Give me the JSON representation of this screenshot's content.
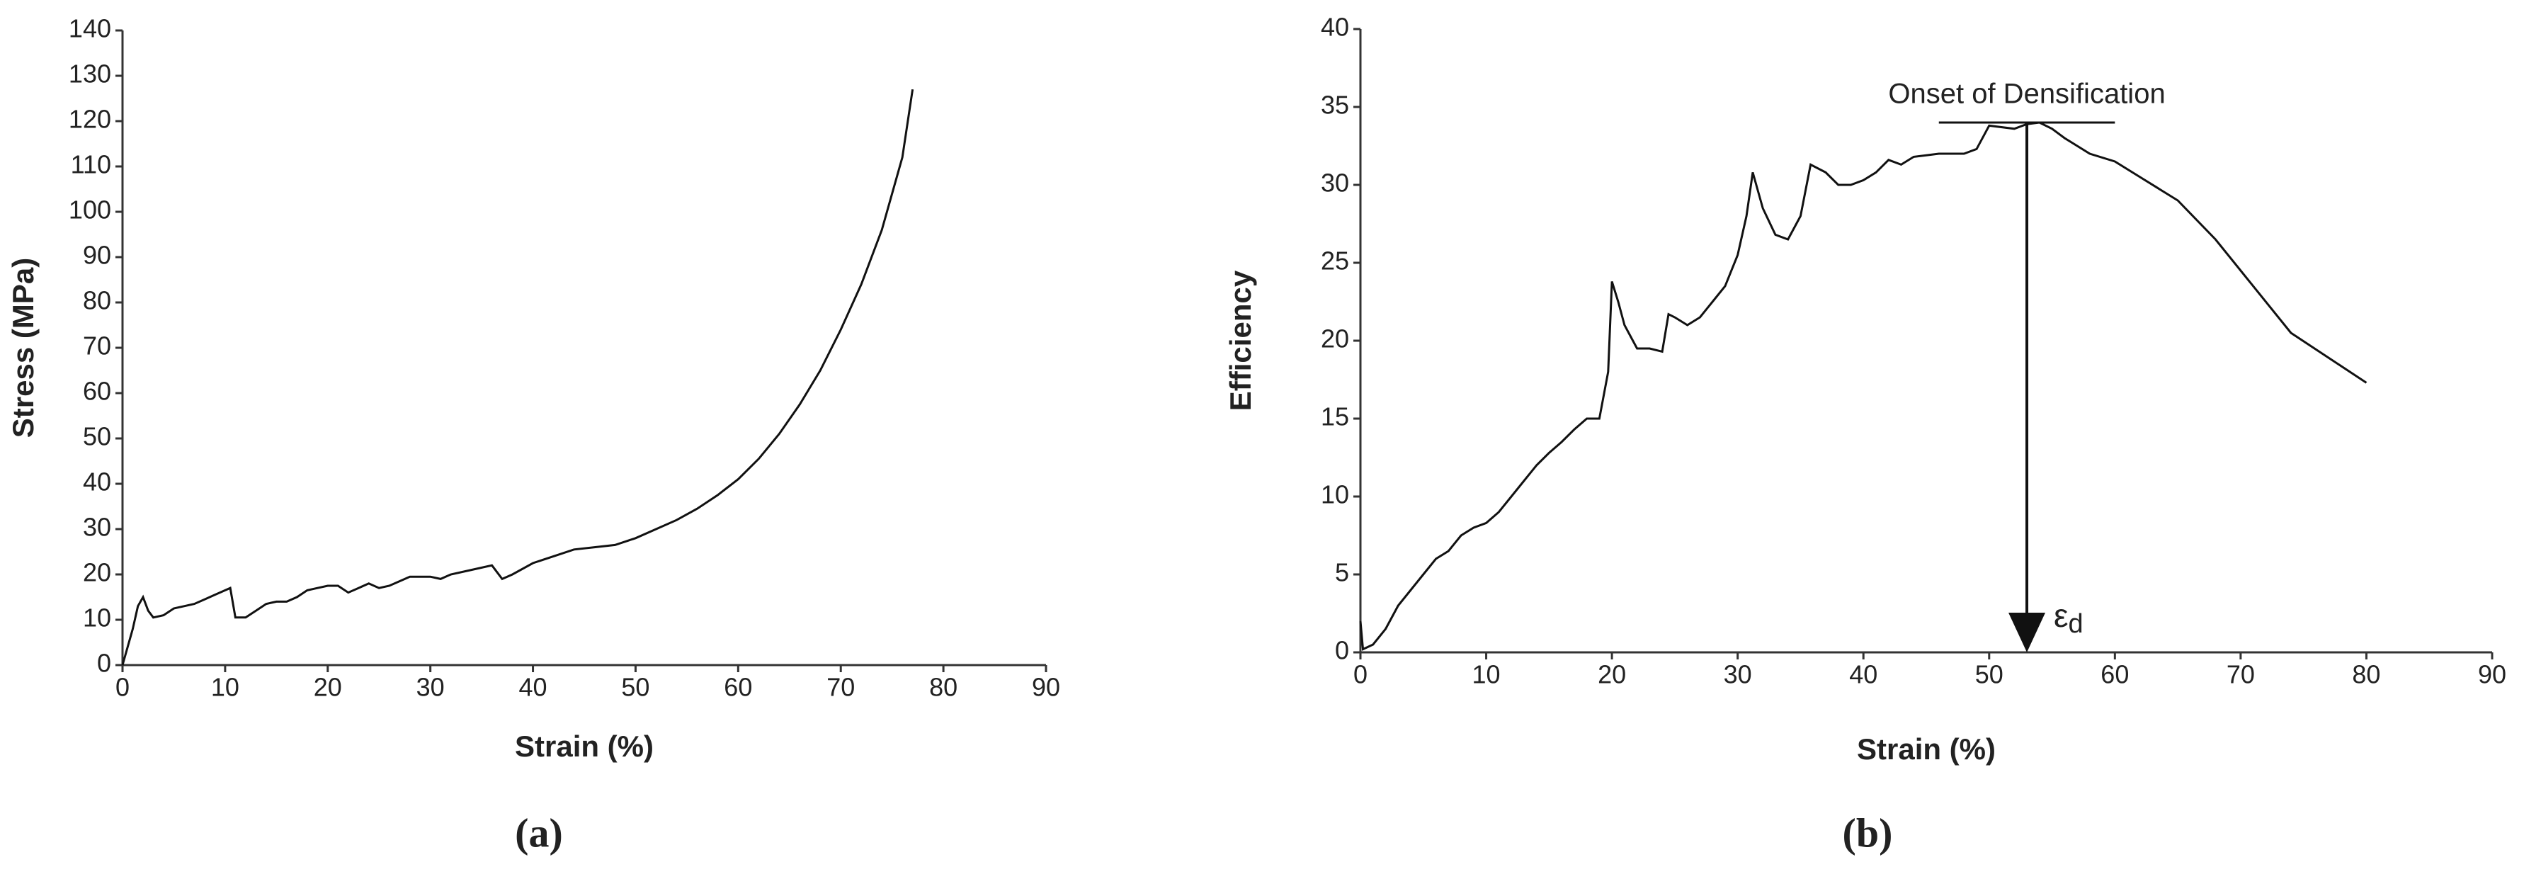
{
  "chart_data": [
    {
      "type": "line",
      "caption": "(a)",
      "x_label": "Strain (%)",
      "y_label": "Stress (MPa)",
      "color": "#111111",
      "x": [
        0,
        1,
        1.5,
        2,
        2.5,
        3,
        4,
        5,
        6,
        7,
        8,
        9,
        10,
        10.5,
        11,
        12,
        13,
        14,
        15,
        16,
        17,
        18,
        19,
        20,
        21,
        22,
        23,
        24,
        25,
        26,
        27,
        28,
        30,
        31,
        32,
        34,
        36,
        37,
        38,
        40,
        42,
        44,
        46,
        48,
        50,
        52,
        54,
        56,
        58,
        60,
        62,
        64,
        66,
        68,
        70,
        72,
        74,
        76,
        77
      ],
      "values": [
        0,
        8,
        13,
        15,
        12,
        10.5,
        11,
        12.5,
        13,
        13.5,
        14.5,
        15.5,
        16.5,
        17,
        10.5,
        10.5,
        12,
        13.5,
        14,
        14,
        15,
        16.5,
        17,
        17.5,
        17.5,
        16,
        17,
        18,
        17,
        17.5,
        18.5,
        19.5,
        19.5,
        19,
        20,
        21,
        22,
        19,
        20,
        22.5,
        24,
        25.5,
        26,
        26.5,
        28,
        30,
        32,
        34.5,
        37.5,
        41,
        45.5,
        51,
        57.5,
        65,
        74,
        84,
        96,
        112,
        127
      ],
      "xlim": [
        0,
        90
      ],
      "ylim": [
        0,
        140
      ],
      "xticks": [
        0,
        10,
        20,
        30,
        40,
        50,
        60,
        70,
        80,
        90
      ],
      "yticks": [
        0,
        10,
        20,
        30,
        40,
        50,
        60,
        70,
        80,
        90,
        100,
        110,
        120,
        130,
        140
      ]
    },
    {
      "type": "line",
      "caption": "(b)",
      "x_label": "Strain (%)",
      "y_label": "Efficiency",
      "color": "#111111",
      "x": [
        0,
        0.2,
        1,
        2,
        3,
        4,
        5,
        6,
        7,
        8,
        9,
        10,
        11,
        12,
        13,
        14,
        15,
        16,
        17,
        18,
        19,
        19.7,
        20,
        20.5,
        21,
        22,
        23,
        24,
        24.5,
        25,
        26,
        27,
        28,
        29,
        30,
        30.7,
        31.2,
        32,
        33,
        34,
        35,
        35.8,
        37,
        38,
        39,
        40,
        41,
        42,
        43,
        44,
        45,
        46,
        48,
        49,
        50,
        52,
        53,
        54,
        55,
        56,
        58,
        60,
        62,
        65,
        68,
        70,
        74,
        80
      ],
      "values": [
        2,
        0.2,
        0.5,
        1.5,
        3,
        4,
        5,
        6,
        6.5,
        7.5,
        8,
        8.3,
        9,
        10,
        11,
        12,
        12.8,
        13.5,
        14.3,
        15,
        15,
        18,
        23.8,
        22.5,
        21,
        19.5,
        19.5,
        19.3,
        21.7,
        21.5,
        21,
        21.5,
        22.5,
        23.5,
        25.5,
        28,
        30.8,
        28.5,
        26.8,
        26.5,
        28,
        31.3,
        30.8,
        30,
        30,
        30.3,
        30.8,
        31.6,
        31.3,
        31.8,
        31.9,
        32,
        32,
        32.3,
        33.8,
        33.6,
        33.9,
        34,
        33.6,
        33,
        32,
        31.5,
        30.5,
        29,
        26.5,
        24.5,
        20.5,
        17.3
      ],
      "xlim": [
        0,
        90
      ],
      "ylim": [
        0,
        40
      ],
      "xticks": [
        0,
        10,
        20,
        30,
        40,
        50,
        60,
        70,
        80,
        90
      ],
      "yticks": [
        0,
        5,
        10,
        15,
        20,
        25,
        30,
        35,
        40
      ],
      "annotation": {
        "text": "Onset of Densification",
        "x": [
          46,
          60
        ],
        "y": 34
      },
      "marker": {
        "x": 53,
        "symbol": "ε",
        "subscript": "d"
      }
    }
  ]
}
